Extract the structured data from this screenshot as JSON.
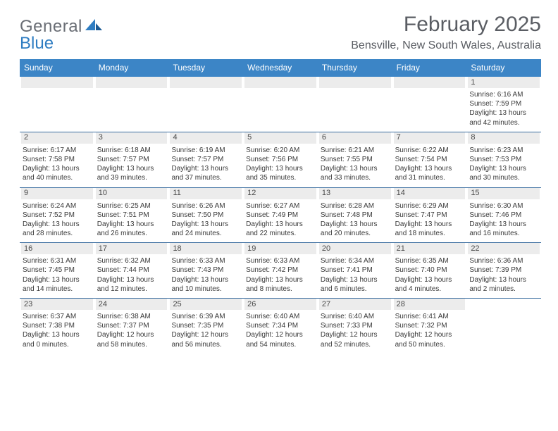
{
  "brand": {
    "general": "General",
    "blue": "Blue"
  },
  "title": "February 2025",
  "location": "Bensville, New South Wales, Australia",
  "colors": {
    "header_bg": "#3c85c6",
    "header_text": "#ffffff",
    "row_border": "#3c6ea0",
    "daynum_bg": "#ececec",
    "text": "#3a3a3a",
    "title_text": "#5a5d63",
    "logo_gray": "#6a6e75",
    "logo_blue": "#2f7dc2",
    "page_bg": "#ffffff"
  },
  "weekdays": [
    "Sunday",
    "Monday",
    "Tuesday",
    "Wednesday",
    "Thursday",
    "Friday",
    "Saturday"
  ],
  "weeks": [
    [
      {
        "empty": true
      },
      {
        "empty": true
      },
      {
        "empty": true
      },
      {
        "empty": true
      },
      {
        "empty": true
      },
      {
        "empty": true
      },
      {
        "day": "1",
        "sunrise": "Sunrise: 6:16 AM",
        "sunset": "Sunset: 7:59 PM",
        "daylight1": "Daylight: 13 hours",
        "daylight2": "and 42 minutes."
      }
    ],
    [
      {
        "day": "2",
        "sunrise": "Sunrise: 6:17 AM",
        "sunset": "Sunset: 7:58 PM",
        "daylight1": "Daylight: 13 hours",
        "daylight2": "and 40 minutes."
      },
      {
        "day": "3",
        "sunrise": "Sunrise: 6:18 AM",
        "sunset": "Sunset: 7:57 PM",
        "daylight1": "Daylight: 13 hours",
        "daylight2": "and 39 minutes."
      },
      {
        "day": "4",
        "sunrise": "Sunrise: 6:19 AM",
        "sunset": "Sunset: 7:57 PM",
        "daylight1": "Daylight: 13 hours",
        "daylight2": "and 37 minutes."
      },
      {
        "day": "5",
        "sunrise": "Sunrise: 6:20 AM",
        "sunset": "Sunset: 7:56 PM",
        "daylight1": "Daylight: 13 hours",
        "daylight2": "and 35 minutes."
      },
      {
        "day": "6",
        "sunrise": "Sunrise: 6:21 AM",
        "sunset": "Sunset: 7:55 PM",
        "daylight1": "Daylight: 13 hours",
        "daylight2": "and 33 minutes."
      },
      {
        "day": "7",
        "sunrise": "Sunrise: 6:22 AM",
        "sunset": "Sunset: 7:54 PM",
        "daylight1": "Daylight: 13 hours",
        "daylight2": "and 31 minutes."
      },
      {
        "day": "8",
        "sunrise": "Sunrise: 6:23 AM",
        "sunset": "Sunset: 7:53 PM",
        "daylight1": "Daylight: 13 hours",
        "daylight2": "and 30 minutes."
      }
    ],
    [
      {
        "day": "9",
        "sunrise": "Sunrise: 6:24 AM",
        "sunset": "Sunset: 7:52 PM",
        "daylight1": "Daylight: 13 hours",
        "daylight2": "and 28 minutes."
      },
      {
        "day": "10",
        "sunrise": "Sunrise: 6:25 AM",
        "sunset": "Sunset: 7:51 PM",
        "daylight1": "Daylight: 13 hours",
        "daylight2": "and 26 minutes."
      },
      {
        "day": "11",
        "sunrise": "Sunrise: 6:26 AM",
        "sunset": "Sunset: 7:50 PM",
        "daylight1": "Daylight: 13 hours",
        "daylight2": "and 24 minutes."
      },
      {
        "day": "12",
        "sunrise": "Sunrise: 6:27 AM",
        "sunset": "Sunset: 7:49 PM",
        "daylight1": "Daylight: 13 hours",
        "daylight2": "and 22 minutes."
      },
      {
        "day": "13",
        "sunrise": "Sunrise: 6:28 AM",
        "sunset": "Sunset: 7:48 PM",
        "daylight1": "Daylight: 13 hours",
        "daylight2": "and 20 minutes."
      },
      {
        "day": "14",
        "sunrise": "Sunrise: 6:29 AM",
        "sunset": "Sunset: 7:47 PM",
        "daylight1": "Daylight: 13 hours",
        "daylight2": "and 18 minutes."
      },
      {
        "day": "15",
        "sunrise": "Sunrise: 6:30 AM",
        "sunset": "Sunset: 7:46 PM",
        "daylight1": "Daylight: 13 hours",
        "daylight2": "and 16 minutes."
      }
    ],
    [
      {
        "day": "16",
        "sunrise": "Sunrise: 6:31 AM",
        "sunset": "Sunset: 7:45 PM",
        "daylight1": "Daylight: 13 hours",
        "daylight2": "and 14 minutes."
      },
      {
        "day": "17",
        "sunrise": "Sunrise: 6:32 AM",
        "sunset": "Sunset: 7:44 PM",
        "daylight1": "Daylight: 13 hours",
        "daylight2": "and 12 minutes."
      },
      {
        "day": "18",
        "sunrise": "Sunrise: 6:33 AM",
        "sunset": "Sunset: 7:43 PM",
        "daylight1": "Daylight: 13 hours",
        "daylight2": "and 10 minutes."
      },
      {
        "day": "19",
        "sunrise": "Sunrise: 6:33 AM",
        "sunset": "Sunset: 7:42 PM",
        "daylight1": "Daylight: 13 hours",
        "daylight2": "and 8 minutes."
      },
      {
        "day": "20",
        "sunrise": "Sunrise: 6:34 AM",
        "sunset": "Sunset: 7:41 PM",
        "daylight1": "Daylight: 13 hours",
        "daylight2": "and 6 minutes."
      },
      {
        "day": "21",
        "sunrise": "Sunrise: 6:35 AM",
        "sunset": "Sunset: 7:40 PM",
        "daylight1": "Daylight: 13 hours",
        "daylight2": "and 4 minutes."
      },
      {
        "day": "22",
        "sunrise": "Sunrise: 6:36 AM",
        "sunset": "Sunset: 7:39 PM",
        "daylight1": "Daylight: 13 hours",
        "daylight2": "and 2 minutes."
      }
    ],
    [
      {
        "day": "23",
        "sunrise": "Sunrise: 6:37 AM",
        "sunset": "Sunset: 7:38 PM",
        "daylight1": "Daylight: 13 hours",
        "daylight2": "and 0 minutes."
      },
      {
        "day": "24",
        "sunrise": "Sunrise: 6:38 AM",
        "sunset": "Sunset: 7:37 PM",
        "daylight1": "Daylight: 12 hours",
        "daylight2": "and 58 minutes."
      },
      {
        "day": "25",
        "sunrise": "Sunrise: 6:39 AM",
        "sunset": "Sunset: 7:35 PM",
        "daylight1": "Daylight: 12 hours",
        "daylight2": "and 56 minutes."
      },
      {
        "day": "26",
        "sunrise": "Sunrise: 6:40 AM",
        "sunset": "Sunset: 7:34 PM",
        "daylight1": "Daylight: 12 hours",
        "daylight2": "and 54 minutes."
      },
      {
        "day": "27",
        "sunrise": "Sunrise: 6:40 AM",
        "sunset": "Sunset: 7:33 PM",
        "daylight1": "Daylight: 12 hours",
        "daylight2": "and 52 minutes."
      },
      {
        "day": "28",
        "sunrise": "Sunrise: 6:41 AM",
        "sunset": "Sunset: 7:32 PM",
        "daylight1": "Daylight: 12 hours",
        "daylight2": "and 50 minutes."
      },
      {
        "empty": true,
        "noStrip": true
      }
    ]
  ]
}
